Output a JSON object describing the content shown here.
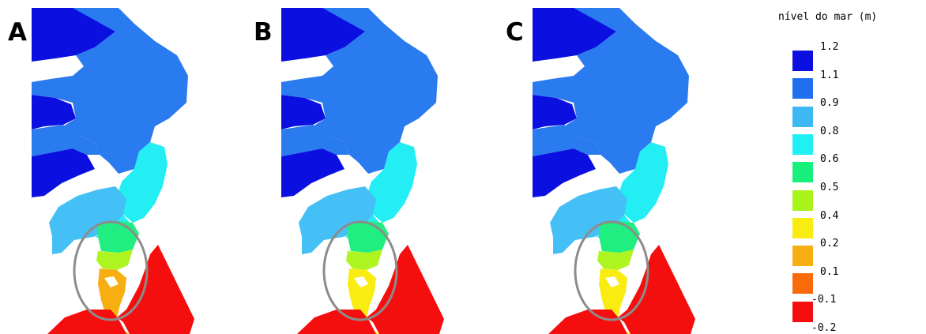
{
  "panels": [
    {
      "letter": "A",
      "variant": "A"
    },
    {
      "letter": "B",
      "variant": "B"
    },
    {
      "letter": "C",
      "variant": "C"
    }
  ],
  "legend": {
    "title": "nível do mar (m)",
    "labels": [
      "1.2",
      "1.1",
      "0.9",
      "0.8",
      "0.6",
      "0.5",
      "0.4",
      "0.2",
      "0.1",
      "-0.1",
      "-0.2"
    ],
    "colors": [
      "#0b10e0",
      "#1f6ff0",
      "#3db8f2",
      "#20f0f4",
      "#18f07c",
      "#a8f41a",
      "#f8ec10",
      "#f6ae10",
      "#f86a0a",
      "#f50e0e"
    ]
  },
  "map_colors": {
    "deep_blue": "#0b10e0",
    "blue": "#2a7af0",
    "light_blue": "#44c0f6",
    "cyan": "#22eef4",
    "green": "#20ee80",
    "lime": "#aef420",
    "yellow": "#f8ec10",
    "orange": "#f6ae10",
    "red": "#f50e0e",
    "circle": "#8c8c8c"
  }
}
